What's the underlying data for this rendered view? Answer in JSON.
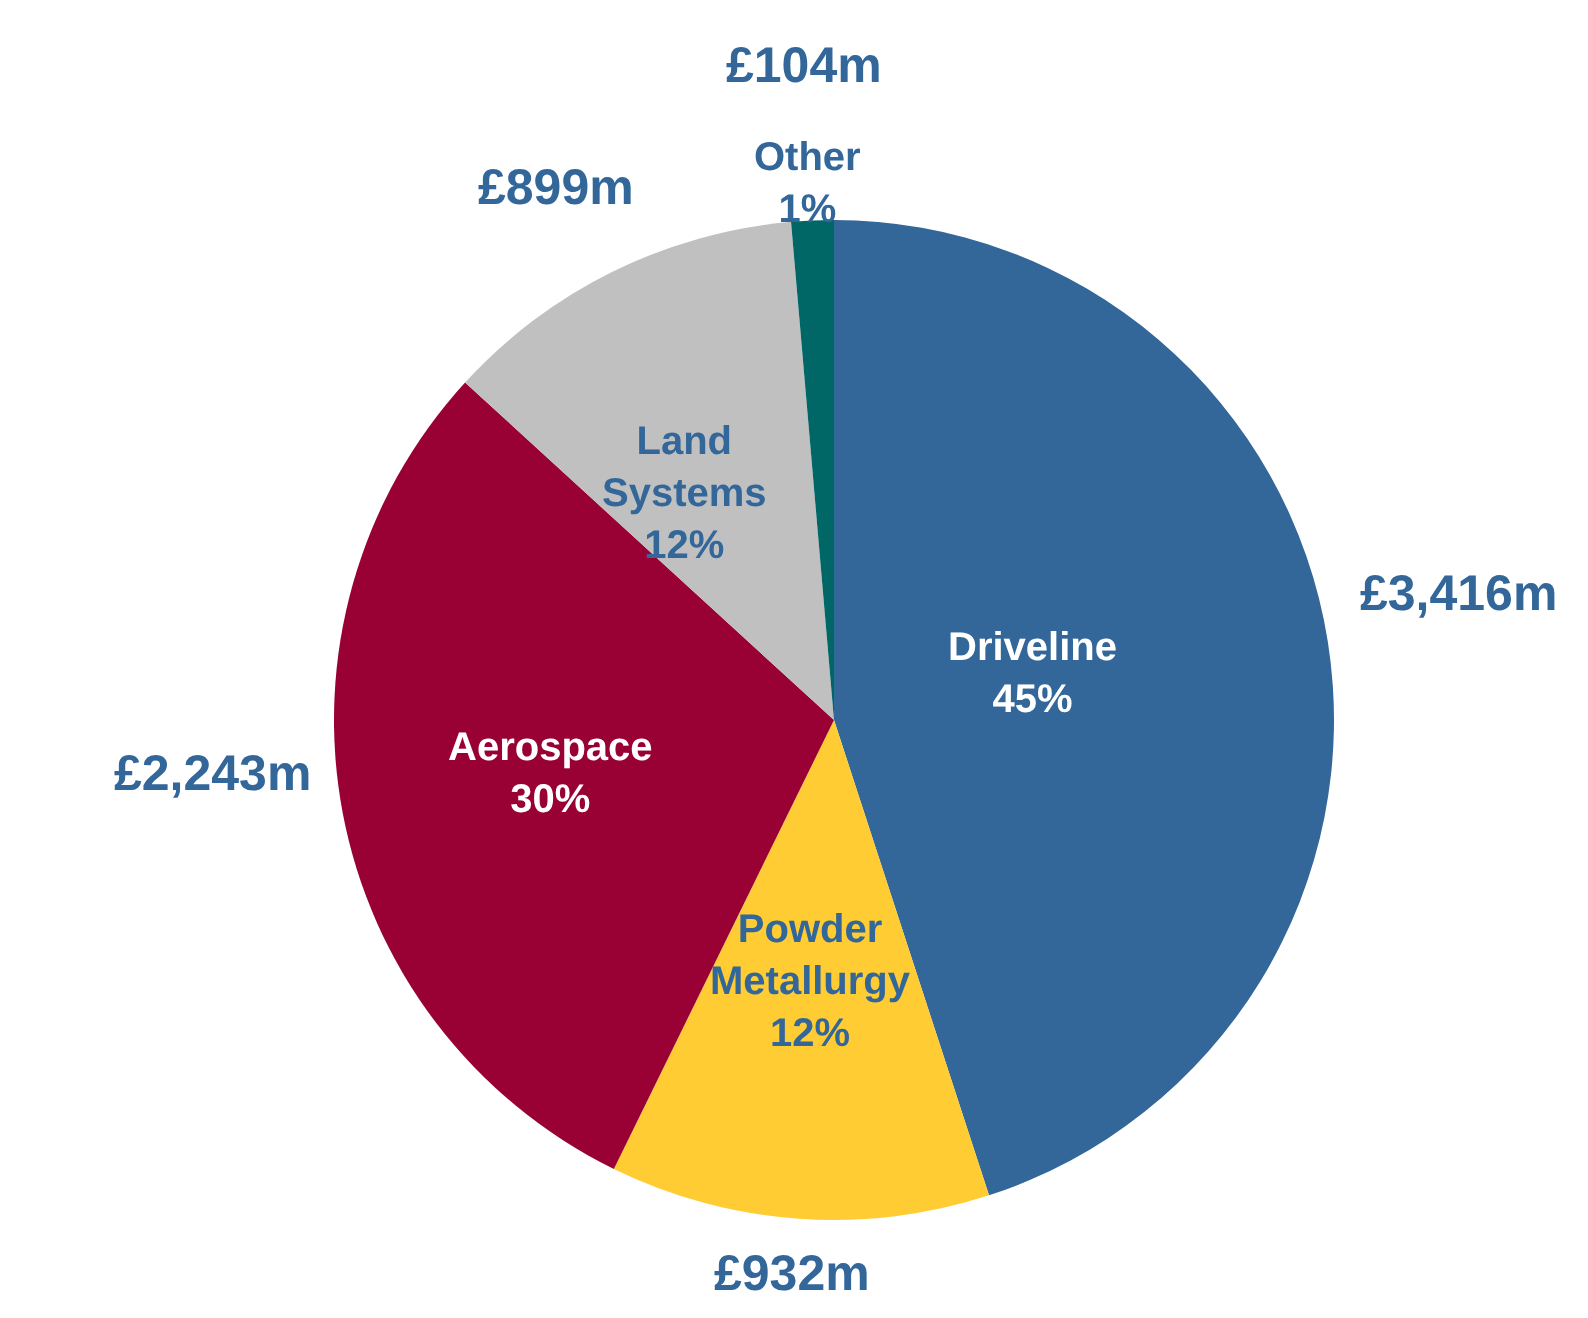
{
  "chart_data": {
    "type": "pie",
    "categories": [
      "Driveline",
      "Powder Metallurgy",
      "Aerospace",
      "Land Systems",
      "Other"
    ],
    "values": [
      3416,
      932,
      2243,
      899,
      104
    ],
    "colors": [
      "#336699",
      "#ffcc33",
      "#990033",
      "#c0c0c0",
      "#006666"
    ],
    "value_labels": [
      "£3,416m",
      "£932m",
      "£2,243m",
      "£899m",
      "£104m"
    ],
    "annotations": [
      "45%",
      "12%",
      "30%",
      "12%",
      "1%"
    ]
  }
}
